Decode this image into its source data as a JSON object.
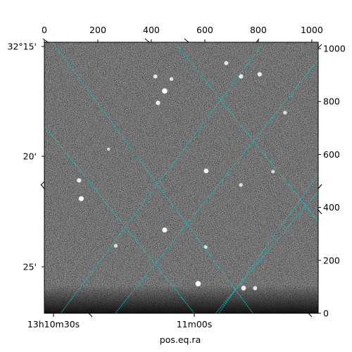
{
  "chart_data": {
    "type": "heatmap",
    "image": {
      "description_of_content": "grayscale astronomical noise image with point-source stars",
      "colormap": "gray",
      "pixel_ranges": {
        "x": [
          0,
          1024
        ],
        "y": [
          0,
          1024
        ]
      }
    },
    "xlabel": "pos.eq.ra",
    "pixel_x_ticks": [
      "0",
      "200",
      "400",
      "600",
      "800",
      "1000"
    ],
    "pixel_y_ticks": [
      "0",
      "200",
      "400",
      "600",
      "800",
      "1000"
    ],
    "ra_ticks": [
      "13h10m30s",
      "11m00s"
    ],
    "dec_ticks": [
      "32°15'",
      "20'",
      "25'"
    ],
    "grid": true,
    "grid_color": "#00cccc",
    "stars": [
      {
        "x": 450,
        "y": 840,
        "bright": 1.0
      },
      {
        "x": 425,
        "y": 795,
        "bright": 0.7
      },
      {
        "x": 415,
        "y": 895,
        "bright": 0.6
      },
      {
        "x": 475,
        "y": 885,
        "bright": 0.5
      },
      {
        "x": 680,
        "y": 945,
        "bright": 0.6
      },
      {
        "x": 735,
        "y": 895,
        "bright": 0.7
      },
      {
        "x": 805,
        "y": 903,
        "bright": 0.7
      },
      {
        "x": 900,
        "y": 758,
        "bright": 0.5
      },
      {
        "x": 605,
        "y": 538,
        "bright": 0.8
      },
      {
        "x": 735,
        "y": 485,
        "bright": 0.5
      },
      {
        "x": 130,
        "y": 502,
        "bright": 0.7
      },
      {
        "x": 138,
        "y": 433,
        "bright": 0.9
      },
      {
        "x": 450,
        "y": 315,
        "bright": 0.9
      },
      {
        "x": 267,
        "y": 255,
        "bright": 0.5
      },
      {
        "x": 603,
        "y": 250,
        "bright": 0.5
      },
      {
        "x": 575,
        "y": 112,
        "bright": 1.0
      },
      {
        "x": 745,
        "y": 95,
        "bright": 0.8
      },
      {
        "x": 788,
        "y": 95,
        "bright": 0.6
      },
      {
        "x": 855,
        "y": 535,
        "bright": 0.4
      },
      {
        "x": 240,
        "y": 620,
        "bright": 0.3
      }
    ]
  }
}
